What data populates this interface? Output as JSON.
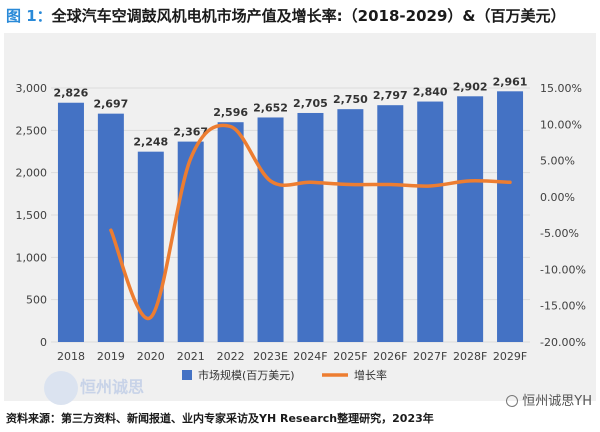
{
  "header": {
    "figure_label": "图 1：",
    "title_text": "全球汽车空调鼓风机电机市场产值及增长率:（2018-2029）&（百万美元）"
  },
  "footer": {
    "source_text": "资料来源：第三方资料、新闻报道、业内专家采访及YH Research整理研究，2023年"
  },
  "watermark": {
    "text": "恒州诚思"
  },
  "wechat": {
    "account": "恒州诚思YH"
  },
  "colors": {
    "bar": "#4472c4",
    "line": "#ed7d31",
    "plot_bg": "#f0f0f0",
    "grid": "#dcdcdc"
  },
  "chart_data": {
    "type": "bar",
    "title": "全球汽车空调鼓风机电机市场产值及增长率:（2018-2029）&（百万美元）",
    "categories": [
      "2018",
      "2019",
      "2020",
      "2021",
      "2022",
      "2023E",
      "2024F",
      "2025F",
      "2026F",
      "2027F",
      "2028F",
      "2029F"
    ],
    "series": [
      {
        "name": "市场规模(百万美元)",
        "type": "bar",
        "axis": "left",
        "values": [
          2826,
          2697,
          2248,
          2367,
          2596,
          2652,
          2705,
          2750,
          2797,
          2840,
          2902,
          2961
        ],
        "labels": [
          "2,826",
          "2,697",
          "2,248",
          "2,367",
          "2,596",
          "2,652",
          "2,705",
          "2,750",
          "2,797",
          "2,840",
          "2,902",
          "2,961"
        ]
      },
      {
        "name": "增长率",
        "type": "line",
        "axis": "right",
        "smooth": true,
        "values": [
          null,
          -4.6,
          -16.6,
          5.3,
          9.7,
          2.2,
          2.0,
          1.7,
          1.7,
          1.5,
          2.2,
          2.0
        ]
      }
    ],
    "left_axis": {
      "ylim": [
        0,
        3000
      ],
      "ticks": [
        0,
        500,
        1000,
        1500,
        2000,
        2500,
        3000
      ],
      "tick_labels": [
        "0",
        "500",
        "1,000",
        "1,500",
        "2,000",
        "2,500",
        "3,000"
      ]
    },
    "right_axis": {
      "ylim": [
        -20,
        15
      ],
      "ticks": [
        -20,
        -15,
        -10,
        -5,
        0,
        5,
        10,
        15
      ],
      "tick_labels": [
        "-20.00%",
        "-15.00%",
        "-10.00%",
        "-5.00%",
        "0.00%",
        "5.00%",
        "10.00%",
        "15.00%"
      ]
    },
    "grid": true,
    "legend": {
      "position": "bottom-center",
      "entries": [
        "市场规模(百万美元)",
        "增长率"
      ]
    }
  }
}
